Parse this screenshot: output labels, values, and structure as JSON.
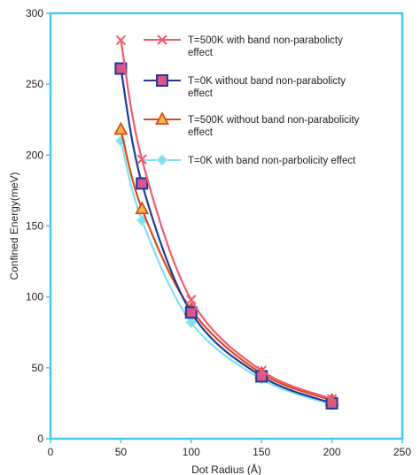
{
  "chart_data": {
    "type": "line",
    "title": "",
    "xlabel": "Dot Radius (Å)",
    "ylabel": "Confined Energy(meV)",
    "xlim": [
      0,
      250
    ],
    "ylim": [
      0,
      300
    ],
    "xticks": [
      0,
      50,
      100,
      150,
      200,
      250
    ],
    "yticks": [
      0,
      50,
      100,
      150,
      200,
      250,
      300
    ],
    "grid": false,
    "legend_position": "top-right",
    "x": [
      50,
      65,
      100,
      150,
      200
    ],
    "series": [
      {
        "name": "T=500K with band non-parabolicty effect",
        "marker": "x",
        "color": "#f05a6e",
        "values": [
          281,
          197,
          98,
          48,
          28
        ]
      },
      {
        "name": "T=0K without band non-parabolicty effect",
        "marker": "square",
        "color": "#1f3a99",
        "marker_fill": "#d9558a",
        "values": [
          261,
          180,
          89,
          44,
          25
        ]
      },
      {
        "name": "T=500K without band non-parabolicity effect",
        "marker": "triangle",
        "color": "#d94a1a",
        "marker_fill": "#f2b84a",
        "values": [
          218,
          162,
          91,
          46,
          27
        ]
      },
      {
        "name": "T=0K with band non-parbolicity effect",
        "marker": "diamond",
        "color": "#7fe0f0",
        "values": [
          210,
          154,
          82,
          42,
          24
        ]
      }
    ]
  }
}
